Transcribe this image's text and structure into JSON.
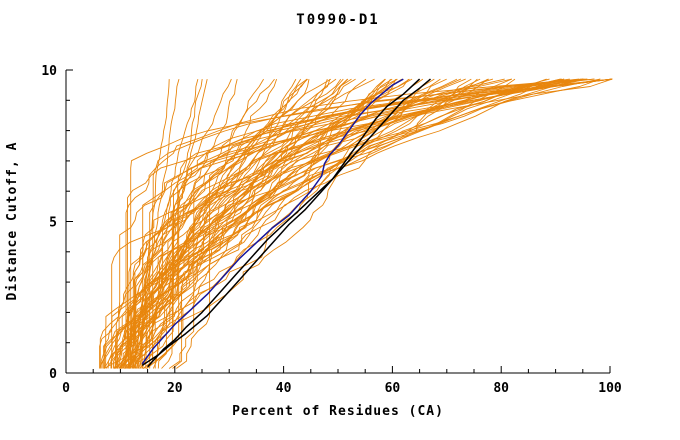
{
  "title": "T0990-D1",
  "colors": {
    "ensemble": "#e8860d",
    "highlight_black": "#000000",
    "highlight_blue": "#16169b",
    "axis": "#000000",
    "background": "#ffffff"
  },
  "axes": {
    "x": {
      "label": "Percent of Residues (CA)",
      "min": 0,
      "max": 100,
      "major_ticks": [
        0,
        20,
        40,
        60,
        80,
        100
      ],
      "minor_step": 5
    },
    "y": {
      "label": "Distance Cutoff, A",
      "min": 0,
      "max": 10,
      "major_ticks": [
        0,
        5,
        10
      ],
      "minor_step": 1
    }
  },
  "chart_data": {
    "type": "line",
    "title": "T0990-D1",
    "xlabel": "Percent of Residues (CA)",
    "ylabel": "Distance Cutoff, A",
    "xlim": [
      0,
      100
    ],
    "ylim": [
      0,
      10
    ],
    "curve_y_start": 0.15,
    "curve_y_end": 9.7,
    "legend": "none",
    "grid": false,
    "highlight_series": [
      {
        "name": "model-curve-black-1",
        "color": "#000000",
        "points": [
          [
            15,
            0.2
          ],
          [
            16,
            0.4
          ],
          [
            18,
            0.8
          ],
          [
            20,
            1.1
          ],
          [
            22,
            1.5
          ],
          [
            25,
            2.0
          ],
          [
            28,
            2.6
          ],
          [
            31,
            3.2
          ],
          [
            34,
            3.8
          ],
          [
            37,
            4.4
          ],
          [
            40,
            4.9
          ],
          [
            43,
            5.4
          ],
          [
            46,
            5.9
          ],
          [
            49,
            6.4
          ],
          [
            51,
            6.9
          ],
          [
            53,
            7.4
          ],
          [
            55,
            7.9
          ],
          [
            57,
            8.4
          ],
          [
            59,
            8.8
          ],
          [
            62,
            9.2
          ],
          [
            65,
            9.7
          ]
        ]
      },
      {
        "name": "model-curve-black-2",
        "color": "#000000",
        "points": [
          [
            14,
            0.25
          ],
          [
            17,
            0.6
          ],
          [
            19,
            0.9
          ],
          [
            22,
            1.3
          ],
          [
            26,
            1.9
          ],
          [
            29,
            2.5
          ],
          [
            32,
            3.1
          ],
          [
            35,
            3.7
          ],
          [
            38,
            4.3
          ],
          [
            41,
            4.9
          ],
          [
            44,
            5.4
          ],
          [
            47,
            6.0
          ],
          [
            50,
            6.6
          ],
          [
            53,
            7.2
          ],
          [
            56,
            7.8
          ],
          [
            59,
            8.4
          ],
          [
            62,
            9.0
          ],
          [
            65,
            9.4
          ],
          [
            67,
            9.7
          ]
        ]
      },
      {
        "name": "model-curve-blue",
        "color": "#16169b",
        "points": [
          [
            14,
            0.3
          ],
          [
            16,
            0.8
          ],
          [
            18,
            1.2
          ],
          [
            20,
            1.6
          ],
          [
            23,
            2.1
          ],
          [
            26,
            2.6
          ],
          [
            29,
            3.2
          ],
          [
            32,
            3.8
          ],
          [
            35,
            4.3
          ],
          [
            38,
            4.8
          ],
          [
            41,
            5.2
          ],
          [
            43,
            5.6
          ],
          [
            45,
            6.0
          ],
          [
            47,
            6.5
          ],
          [
            47.5,
            6.9
          ],
          [
            48.5,
            7.2
          ],
          [
            50,
            7.5
          ],
          [
            52,
            8.0
          ],
          [
            54,
            8.5
          ],
          [
            56,
            8.9
          ],
          [
            58,
            9.2
          ],
          [
            60,
            9.5
          ],
          [
            62,
            9.7
          ]
        ]
      }
    ],
    "ensemble": {
      "name": "server-model-curves",
      "color": "#e8860d",
      "curve_params_format": "[percent_at_cutoff_0, percent_at_cutoff_max, shape_exponent]",
      "curve_params": [
        [
          12,
          19,
          0.9
        ],
        [
          13,
          21,
          1.0
        ],
        [
          11,
          24,
          1.1
        ],
        [
          14,
          27,
          0.95
        ],
        [
          10,
          30,
          1.05
        ],
        [
          12,
          33,
          1.15
        ],
        [
          9,
          26,
          1.0
        ],
        [
          13,
          36,
          1.2
        ],
        [
          6,
          38,
          1.1
        ],
        [
          8,
          40,
          1.3
        ],
        [
          10,
          41,
          1.0
        ],
        [
          12,
          42,
          1.5
        ],
        [
          7,
          43,
          1.2
        ],
        [
          9,
          44,
          1.7
        ],
        [
          11,
          45,
          1.1
        ],
        [
          13,
          46,
          1.4
        ],
        [
          5,
          47,
          1.2
        ],
        [
          8,
          48,
          1.6
        ],
        [
          10,
          49,
          1.0
        ],
        [
          12,
          50,
          1.3
        ],
        [
          6,
          51,
          1.5
        ],
        [
          9,
          52,
          1.1
        ],
        [
          11,
          53,
          1.8
        ],
        [
          14,
          54,
          1.2
        ],
        [
          7,
          55,
          1.4
        ],
        [
          10,
          56,
          1.0
        ],
        [
          12,
          57,
          1.6
        ],
        [
          8,
          58,
          1.2
        ],
        [
          6,
          59,
          1.5
        ],
        [
          9,
          60,
          1.1
        ],
        [
          11,
          61,
          1.3
        ],
        [
          13,
          62,
          1.7
        ],
        [
          7,
          63,
          1.2
        ],
        [
          10,
          64,
          1.5
        ],
        [
          12,
          65,
          1.0
        ],
        [
          8,
          66,
          1.4
        ],
        [
          6,
          67,
          1.6
        ],
        [
          9,
          68,
          1.2
        ],
        [
          11,
          69,
          1.8
        ],
        [
          14,
          70,
          1.3
        ],
        [
          7,
          71,
          1.5
        ],
        [
          10,
          72,
          1.1
        ],
        [
          12,
          73,
          1.4
        ],
        [
          8,
          74,
          1.7
        ],
        [
          6,
          75,
          1.2
        ],
        [
          9,
          76,
          1.5
        ],
        [
          11,
          77,
          1.3
        ],
        [
          13,
          78,
          1.6
        ],
        [
          10,
          47,
          2.0
        ],
        [
          12,
          55,
          2.1
        ],
        [
          9,
          63,
          2.0
        ],
        [
          11,
          58,
          1.9
        ],
        [
          8,
          82,
          2.4
        ],
        [
          10,
          84,
          2.8
        ],
        [
          12,
          86,
          2.3
        ],
        [
          14,
          88,
          3.2
        ],
        [
          9,
          90,
          2.6
        ],
        [
          11,
          92,
          3.5
        ],
        [
          13,
          94,
          2.9
        ],
        [
          15,
          96,
          3.8
        ],
        [
          10,
          98,
          3.1
        ],
        [
          12,
          100,
          4.2
        ],
        [
          8,
          100,
          5.0
        ],
        [
          14,
          99,
          4.6
        ],
        [
          16,
          97,
          3.4
        ],
        [
          18,
          95,
          2.7
        ],
        [
          10,
          93,
          4.0
        ],
        [
          12,
          91,
          3.3
        ],
        [
          9,
          89,
          2.5
        ],
        [
          11,
          87,
          3.7
        ],
        [
          13,
          85,
          2.2
        ],
        [
          15,
          83,
          3.0
        ],
        [
          17,
          100,
          5.5
        ],
        [
          13,
          98,
          6.0
        ],
        [
          10,
          100,
          7.0
        ],
        [
          12,
          100,
          8.0
        ],
        [
          14,
          98,
          6.5
        ],
        [
          16,
          100,
          7.5
        ],
        [
          18,
          99,
          6.0
        ],
        [
          20,
          100,
          8.5
        ],
        [
          15,
          100,
          9.0
        ],
        [
          11,
          99,
          7.2
        ],
        [
          13,
          97,
          6.8
        ],
        [
          17,
          98,
          7.8
        ]
      ]
    }
  }
}
